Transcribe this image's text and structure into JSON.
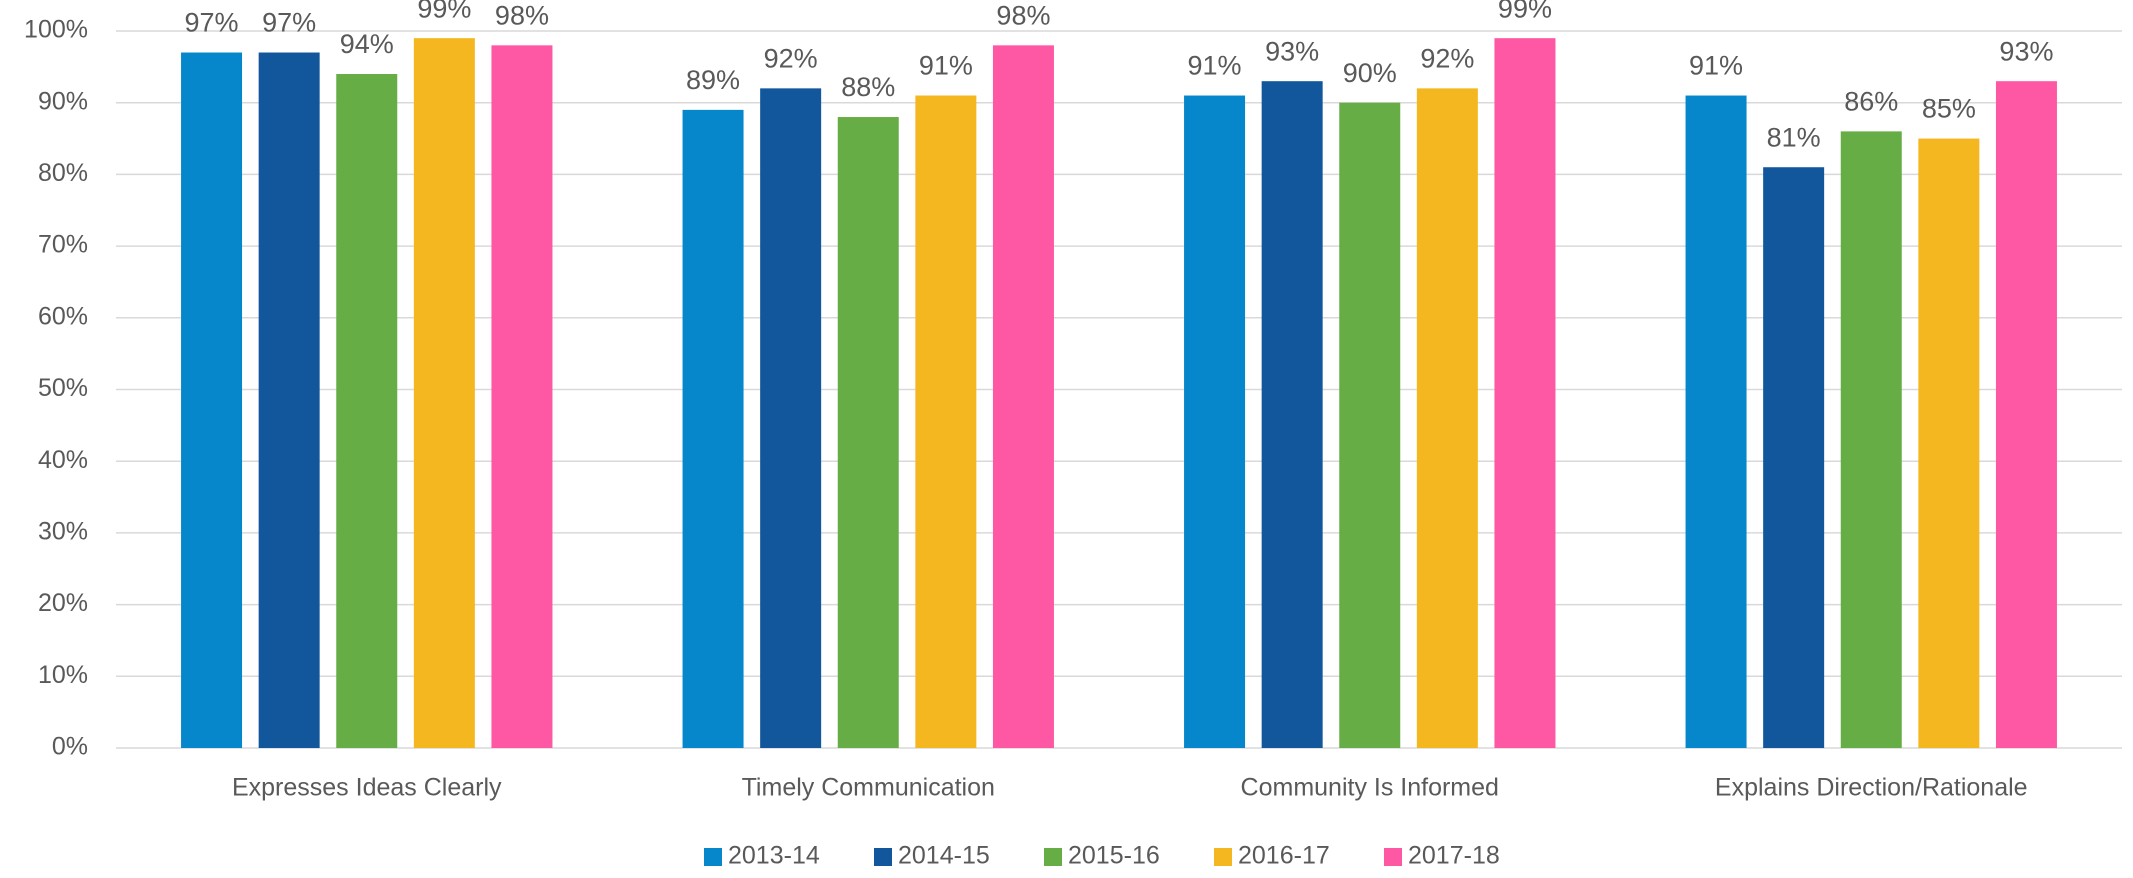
{
  "chart_data": {
    "type": "bar",
    "categories": [
      "Expresses Ideas Clearly",
      "Timely Communication",
      "Community Is Informed",
      "Explains Direction/Rationale"
    ],
    "series": [
      {
        "name": "2013-14",
        "color": "#0787cb",
        "values": [
          97,
          89,
          91,
          91
        ],
        "value_labels": [
          "97%",
          "89%",
          "91%",
          "91%"
        ]
      },
      {
        "name": "2014-15",
        "color": "#12579b",
        "values": [
          97,
          92,
          93,
          81
        ],
        "value_labels": [
          "97%",
          "92%",
          "93%",
          "81%"
        ]
      },
      {
        "name": "2015-16",
        "color": "#67ad46",
        "values": [
          94,
          88,
          90,
          86
        ],
        "value_labels": [
          "94%",
          "88%",
          "90%",
          "86%"
        ]
      },
      {
        "name": "2016-17",
        "color": "#f4b71f",
        "values": [
          99,
          91,
          92,
          85
        ],
        "value_labels": [
          "99%",
          "91%",
          "92%",
          "85%"
        ]
      },
      {
        "name": "2017-18",
        "color": "#fe57a4",
        "values": [
          98,
          98,
          99,
          93
        ],
        "value_labels": [
          "98%",
          "98%",
          "99%",
          "93%"
        ]
      }
    ],
    "ylim": [
      0,
      100
    ],
    "yticks": [
      {
        "value": 0,
        "label": "0%"
      },
      {
        "value": 10,
        "label": "10%"
      },
      {
        "value": 20,
        "label": "20%"
      },
      {
        "value": 30,
        "label": "30%"
      },
      {
        "value": 40,
        "label": "40%"
      },
      {
        "value": 50,
        "label": "50%"
      },
      {
        "value": 60,
        "label": "60%"
      },
      {
        "value": 70,
        "label": "70%"
      },
      {
        "value": 80,
        "label": "80%"
      },
      {
        "value": 90,
        "label": "90%"
      },
      {
        "value": 100,
        "label": "100%"
      }
    ],
    "grid": true,
    "legend": "bottom"
  }
}
